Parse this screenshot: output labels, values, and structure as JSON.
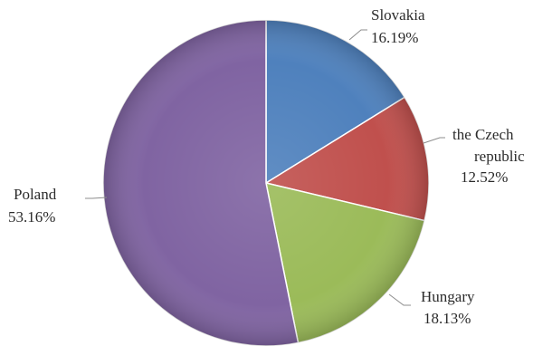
{
  "chart_data": {
    "type": "pie",
    "slices": [
      {
        "label": "Slovakia",
        "value": 16.19,
        "value_label": "16.19%",
        "color": "#4F81BD"
      },
      {
        "label": "the Czech republic",
        "label_lines": [
          "the Czech",
          "republic"
        ],
        "value": 12.52,
        "value_label": "12.52%",
        "color": "#C0504D"
      },
      {
        "label": "Hungary",
        "value": 18.13,
        "value_label": "18.13%",
        "color": "#9BBB59"
      },
      {
        "label": "Poland",
        "value": 53.16,
        "value_label": "53.16%",
        "color": "#8064A2"
      }
    ],
    "start_angle": "12 o'clock",
    "direction": "clockwise",
    "style": "3d-beveled",
    "legend": "none",
    "data_labels": "outside with leader lines"
  }
}
